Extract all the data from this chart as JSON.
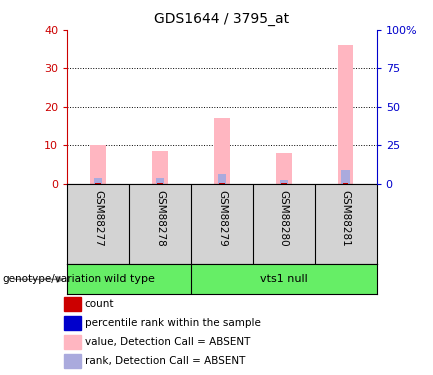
{
  "title": "GDS1644 / 3795_at",
  "samples": [
    "GSM88277",
    "GSM88278",
    "GSM88279",
    "GSM88280",
    "GSM88281"
  ],
  "value_bars": [
    10,
    8.5,
    17,
    8,
    36
  ],
  "rank_bars": [
    1.5,
    1.5,
    2.5,
    1.0,
    3.5
  ],
  "count_bars": [
    0.25,
    0.25,
    0.25,
    0.25,
    0.25
  ],
  "ylim_left": [
    0,
    40
  ],
  "ylim_right": [
    0,
    100
  ],
  "yticks_left": [
    0,
    10,
    20,
    30,
    40
  ],
  "yticks_right": [
    0,
    25,
    50,
    75,
    100
  ],
  "yticklabels_right": [
    "0",
    "25",
    "50",
    "75",
    "100%"
  ],
  "bar_width": 0.25,
  "value_color": "#FFB6C1",
  "rank_color": "#AAAADD",
  "count_color": "#CC0000",
  "percentile_color": "#0000CC",
  "left_axis_color": "#CC0000",
  "right_axis_color": "#0000CC",
  "label_box_color": "#D3D3D3",
  "genotype_label": "genotype/variation",
  "wt_color": "#66EE66",
  "vts_color": "#66EE66",
  "legend_items": [
    {
      "color": "#CC0000",
      "label": "count"
    },
    {
      "color": "#0000CC",
      "label": "percentile rank within the sample"
    },
    {
      "color": "#FFB6C1",
      "label": "value, Detection Call = ABSENT"
    },
    {
      "color": "#AAAADD",
      "label": "rank, Detection Call = ABSENT"
    }
  ]
}
